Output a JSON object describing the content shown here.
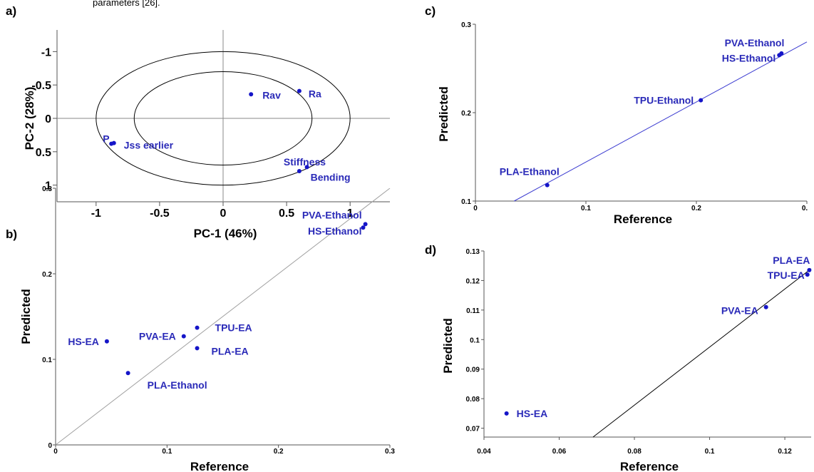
{
  "header_fragment": "parameters [26].",
  "chart_data": [
    {
      "panel": "a)",
      "type": "scatter",
      "xlabel": "PC-1 (46%)",
      "ylabel": "PC-2 (28%)",
      "xlim": [
        -1.1,
        1.1
      ],
      "ylim": [
        -1.1,
        1.1
      ],
      "x_tick_labels": [
        "-1",
        "-0.5",
        "0",
        "0.5",
        "1"
      ],
      "y_tick_labels": [
        "1",
        "0.5",
        "0",
        "-0.5",
        "-1"
      ],
      "ellipses": [
        {
          "rx": 1.0,
          "ry": 1.0
        },
        {
          "rx": 0.7,
          "ry": 0.7
        }
      ],
      "points": [
        {
          "label": "P",
          "x": -0.88,
          "y": 0.38
        },
        {
          "label": "Jss earlier",
          "x": -0.86,
          "y": 0.37
        },
        {
          "label": "Stiffness",
          "x": 0.6,
          "y": 0.79
        },
        {
          "label": "Bending",
          "x": 0.66,
          "y": 0.73
        },
        {
          "label": "Rav",
          "x": 0.22,
          "y": -0.36
        },
        {
          "label": "Ra",
          "x": 0.6,
          "y": -0.41
        }
      ]
    },
    {
      "panel": "b)",
      "type": "scatter",
      "xlabel": "Reference",
      "ylabel": "Predicted",
      "xlim": [
        0,
        0.3
      ],
      "ylim": [
        0,
        0.3
      ],
      "x_tick_labels": [
        "0",
        "0.1",
        "0.2",
        "0.3"
      ],
      "y_tick_labels": [
        "0.3",
        "0.2",
        "0.1",
        "0"
      ],
      "fit_line": {
        "x": [
          0,
          0.3
        ],
        "y": [
          0,
          0.3
        ]
      },
      "points": [
        {
          "label": "PVA-Ethanol",
          "x": 0.278,
          "y": 0.258
        },
        {
          "label": "HS-Ethanol",
          "x": 0.276,
          "y": 0.254
        },
        {
          "label": "HS-EA",
          "x": 0.046,
          "y": 0.121
        },
        {
          "label": "PVA-EA",
          "x": 0.115,
          "y": 0.127
        },
        {
          "label": "TPU-EA",
          "x": 0.127,
          "y": 0.137
        },
        {
          "label": "PLA-EA",
          "x": 0.127,
          "y": 0.113
        },
        {
          "label": "PLA-Ethanol",
          "x": 0.065,
          "y": 0.084
        }
      ]
    },
    {
      "panel": "c)",
      "type": "scatter",
      "xlabel": "Reference",
      "ylabel": "Predicted",
      "xlim": [
        0,
        0.3
      ],
      "ylim": [
        0.1,
        0.3
      ],
      "x_tick_labels": [
        "0",
        "0.1",
        "0.2",
        "0."
      ],
      "y_tick_labels": [
        "0.3",
        "0.2",
        "0.1"
      ],
      "fit_line": {
        "x": [
          0.035,
          0.3
        ],
        "y": [
          0.1,
          0.28
        ]
      },
      "points": [
        {
          "label": "PVA-Ethanol",
          "x": 0.277,
          "y": 0.267
        },
        {
          "label": "HS-Ethanol",
          "x": 0.275,
          "y": 0.265
        },
        {
          "label": "TPU-Ethanol",
          "x": 0.204,
          "y": 0.214
        },
        {
          "label": "PLA-Ethanol",
          "x": 0.065,
          "y": 0.118
        }
      ]
    },
    {
      "panel": "d)",
      "type": "scatter",
      "xlabel": "Reference",
      "ylabel": "Predicted",
      "xlim": [
        0.04,
        0.127
      ],
      "ylim": [
        0.067,
        0.13
      ],
      "x_tick_labels": [
        "0.04",
        "0.06",
        "0.08",
        "0.1",
        "0.12"
      ],
      "y_tick_labels": [
        "0.13",
        "0.12",
        "0.11",
        "0.1",
        "0.09",
        "0.08",
        "0.07"
      ],
      "fit_line": {
        "x": [
          0.069,
          0.127
        ],
        "y": [
          0.067,
          0.124
        ]
      },
      "points": [
        {
          "label": "PLA-EA",
          "x": 0.1265,
          "y": 0.1235
        },
        {
          "label": "TPU-EA",
          "x": 0.126,
          "y": 0.122
        },
        {
          "label": "PVA-EA",
          "x": 0.115,
          "y": 0.111
        },
        {
          "label": "HS-EA",
          "x": 0.046,
          "y": 0.075
        }
      ]
    }
  ],
  "colors": {
    "points": "#1515c8",
    "labels": "#2a2ab8",
    "axes": "#555555",
    "fit_line_b": "#a0a0a0",
    "fit_line_c": "#3a3ad0",
    "fit_line_d": "#000000",
    "ellipse": "#000000"
  }
}
